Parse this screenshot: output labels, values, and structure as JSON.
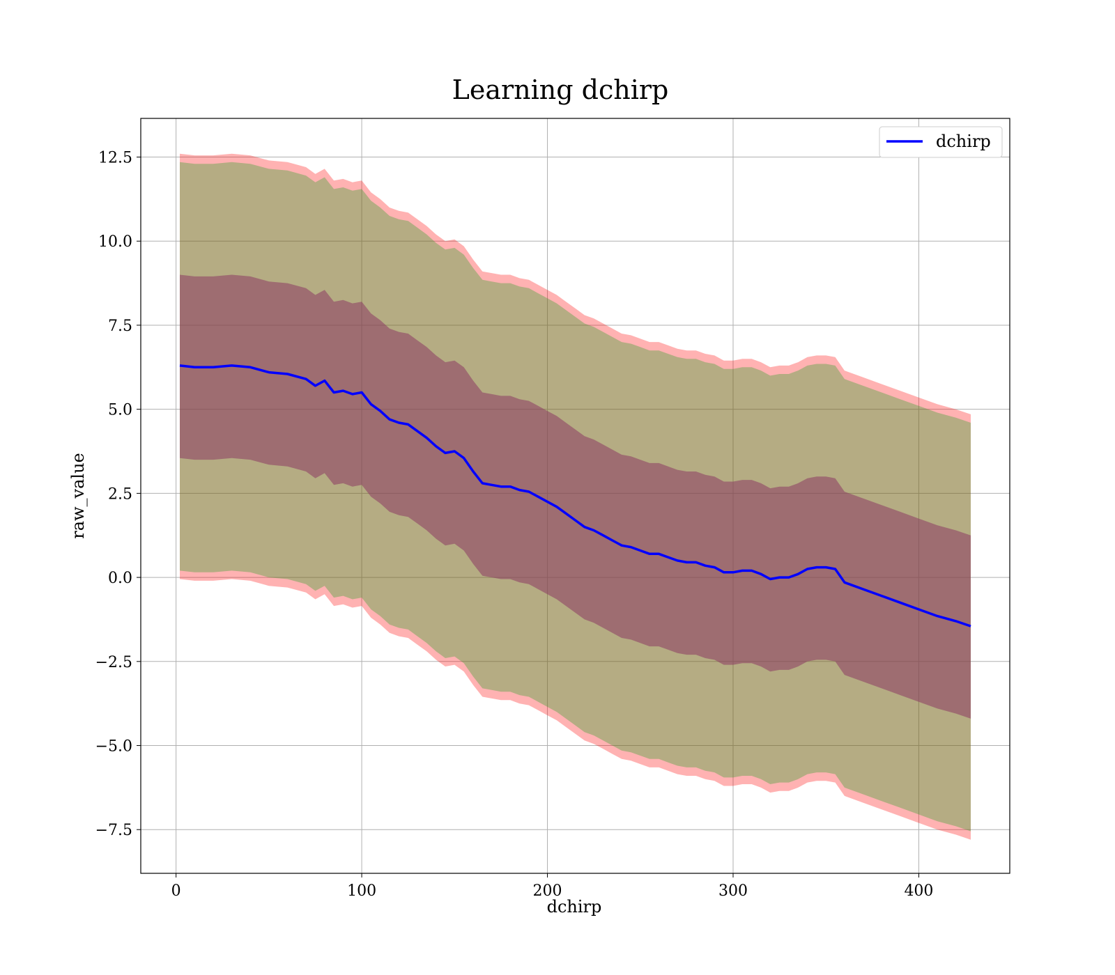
{
  "chart_data": {
    "type": "line",
    "title": "Learning dchirp",
    "xlabel": "dchirp",
    "ylabel": "raw_value",
    "xlim": [
      -19,
      449
    ],
    "ylim": [
      -8.8,
      13.65
    ],
    "grid": true,
    "legend": {
      "position": "top-right",
      "entries": [
        "dchirp"
      ]
    },
    "xticks": [
      0,
      100,
      200,
      300,
      400
    ],
    "xtick_labels": [
      "0",
      "100",
      "200",
      "300",
      "400"
    ],
    "yticks": [
      -7.5,
      -5.0,
      -2.5,
      0.0,
      2.5,
      5.0,
      7.5,
      10.0,
      12.5
    ],
    "ytick_labels": [
      "−7.5",
      "−5.0",
      "−2.5",
      "0.0",
      "2.5",
      "5.0",
      "7.5",
      "10.0",
      "12.5"
    ],
    "colors": {
      "line": "#0000ff",
      "outer_band": "#ff0000",
      "inner_band": "#2ca02c",
      "core_band": "#8b3a62"
    },
    "series": [
      {
        "name": "dchirp",
        "x": [
          2,
          10,
          20,
          30,
          40,
          50,
          60,
          70,
          75,
          80,
          85,
          90,
          95,
          100,
          105,
          110,
          115,
          120,
          125,
          130,
          135,
          140,
          145,
          150,
          155,
          160,
          165,
          170,
          175,
          180,
          185,
          190,
          195,
          200,
          205,
          210,
          215,
          220,
          225,
          230,
          235,
          240,
          245,
          250,
          255,
          260,
          265,
          270,
          275,
          280,
          285,
          290,
          295,
          300,
          305,
          310,
          315,
          320,
          325,
          330,
          335,
          340,
          345,
          350,
          355,
          360,
          370,
          380,
          390,
          400,
          410,
          420,
          428
        ],
        "y": [
          6.3,
          6.25,
          6.25,
          6.3,
          6.25,
          6.1,
          6.05,
          5.9,
          5.7,
          5.85,
          5.5,
          5.55,
          5.45,
          5.5,
          5.15,
          4.95,
          4.7,
          4.6,
          4.55,
          4.35,
          4.15,
          3.9,
          3.7,
          3.75,
          3.55,
          3.15,
          2.8,
          2.75,
          2.7,
          2.7,
          2.6,
          2.55,
          2.4,
          2.25,
          2.1,
          1.9,
          1.7,
          1.5,
          1.4,
          1.25,
          1.1,
          0.95,
          0.9,
          0.8,
          0.7,
          0.7,
          0.6,
          0.5,
          0.45,
          0.45,
          0.35,
          0.3,
          0.15,
          0.15,
          0.2,
          0.2,
          0.1,
          -0.05,
          0.0,
          0.0,
          0.1,
          0.25,
          0.3,
          0.3,
          0.25,
          -0.15,
          -0.35,
          -0.55,
          -0.75,
          -0.95,
          -1.15,
          -1.3,
          -1.45
        ]
      }
    ],
    "bands": [
      {
        "name": "outer",
        "upper_offset": 6.3,
        "lower_offset": 6.35
      },
      {
        "name": "inner",
        "upper_offset": 6.05,
        "lower_offset": 6.1
      },
      {
        "name": "core",
        "upper_offset": 2.7,
        "lower_offset": 2.75
      }
    ]
  }
}
